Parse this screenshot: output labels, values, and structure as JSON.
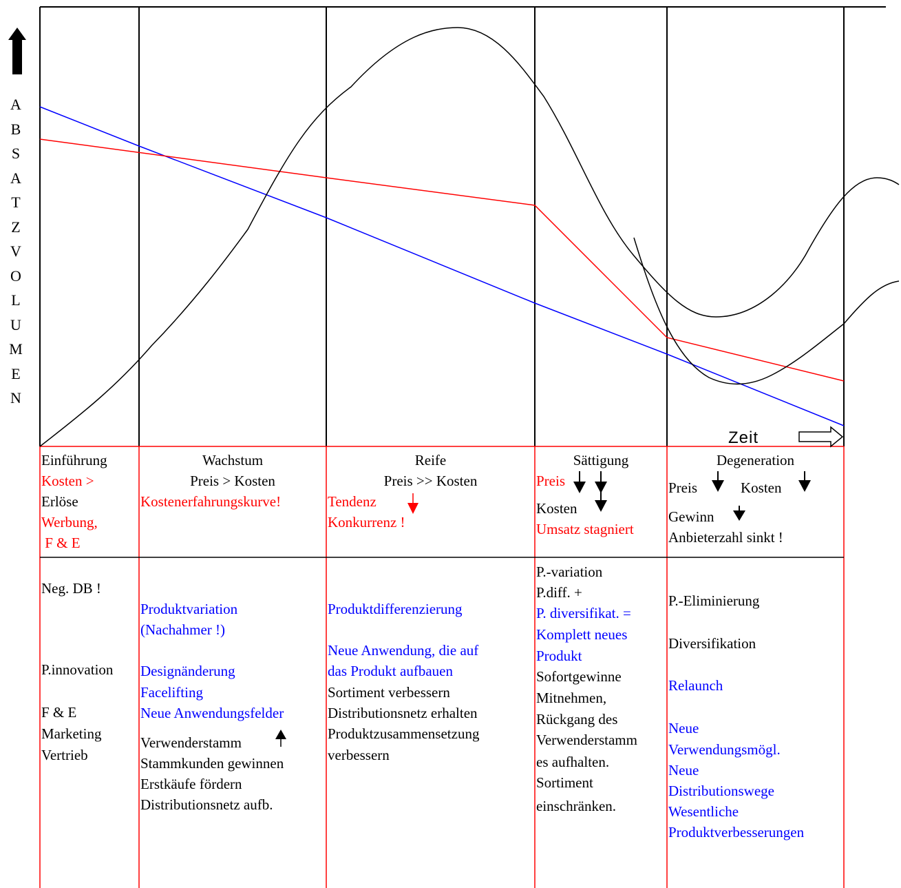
{
  "y_axis": {
    "label_letters": [
      "A",
      "B",
      "S",
      "A",
      "T",
      "Z",
      "V",
      "O",
      "L",
      "U",
      "M",
      "E",
      "N"
    ]
  },
  "x_axis": {
    "label": "Zeit"
  },
  "phases": [
    {
      "name": "Einführung",
      "header_lines": [
        {
          "text": "Einführung",
          "color": "black"
        },
        {
          "text": "Kosten >",
          "color": "red"
        },
        {
          "text": "Erlöse",
          "color": "black"
        },
        {
          "text": "Werbung,",
          "color": "red"
        },
        {
          "text": " F & E",
          "color": "red"
        }
      ],
      "body_lines": [
        {
          "text": "Neg. DB !",
          "color": "black"
        },
        {
          "text": "P.innovation",
          "color": "black"
        },
        {
          "text": "F & E",
          "color": "black"
        },
        {
          "text": "Marketing",
          "color": "black"
        },
        {
          "text": "Vertrieb",
          "color": "black"
        }
      ]
    },
    {
      "name": "Wachstum",
      "header_lines": [
        {
          "text": "Wachstum",
          "color": "black"
        },
        {
          "text": "Preis > Kosten",
          "color": "black"
        },
        {
          "text": "Kostenerfahrungskurve!",
          "color": "red"
        }
      ],
      "body_lines": [
        {
          "text": "Produktvariation",
          "color": "blue"
        },
        {
          "text": "(Nachahmer !)",
          "color": "blue"
        },
        {
          "text": "Designänderung",
          "color": "blue"
        },
        {
          "text": "Facelifting",
          "color": "blue"
        },
        {
          "text": "Neue Anwendungsfelder",
          "color": "blue"
        },
        {
          "text": "Verwenderstamm",
          "color": "black"
        },
        {
          "text": "Stammkunden gewinnen",
          "color": "black"
        },
        {
          "text": "Erstkäufe fördern",
          "color": "black"
        },
        {
          "text": "Distributionsnetz aufb.",
          "color": "black"
        }
      ]
    },
    {
      "name": "Reife",
      "header_lines": [
        {
          "text": "Reife",
          "color": "black"
        },
        {
          "text": "Preis >> Kosten",
          "color": "black"
        },
        {
          "text": "Tendenz",
          "color": "red"
        },
        {
          "text": "Konkurrenz !",
          "color": "red"
        }
      ],
      "body_lines": [
        {
          "text": "Produktdifferenzierung",
          "color": "blue"
        },
        {
          "text": "Neue Anwendung, die auf",
          "color": "blue"
        },
        {
          "text": "das Produkt aufbauen",
          "color": "blue"
        },
        {
          "text": "Sortiment verbessern",
          "color": "black"
        },
        {
          "text": "Distributionsnetz erhalten",
          "color": "black"
        },
        {
          "text": "Produktzusammensetzung",
          "color": "black"
        },
        {
          "text": "verbessern",
          "color": "black"
        }
      ]
    },
    {
      "name": "Sättigung",
      "header_lines": [
        {
          "text": "Sättigung",
          "color": "black"
        },
        {
          "text": "Preis",
          "color": "red"
        },
        {
          "text": "Kosten",
          "color": "black"
        },
        {
          "text": "Umsatz stagniert",
          "color": "red"
        }
      ],
      "body_lines": [
        {
          "text": "P.-variation",
          "color": "black"
        },
        {
          "text": "P.diff. +",
          "color": "black"
        },
        {
          "text": "P. diversifikat. =",
          "color": "blue"
        },
        {
          "text": "Komplett neues",
          "color": "blue"
        },
        {
          "text": "Produkt",
          "color": "blue"
        },
        {
          "text": "Sofortgewinne",
          "color": "black"
        },
        {
          "text": "Mitnehmen,",
          "color": "black"
        },
        {
          "text": "Rückgang des",
          "color": "black"
        },
        {
          "text": "Verwenderstamm",
          "color": "black"
        },
        {
          "text": "es aufhalten.",
          "color": "black"
        },
        {
          "text": "Sortiment",
          "color": "black"
        },
        {
          "text": "einschränken.",
          "color": "black"
        }
      ]
    },
    {
      "name": "Degeneration",
      "header_lines": [
        {
          "text": "Degeneration",
          "color": "black"
        },
        {
          "text": "Preis",
          "color": "black"
        },
        {
          "text": "Kosten",
          "color": "black"
        },
        {
          "text": "Gewinn",
          "color": "black"
        },
        {
          "text": "Anbieterzahl sinkt !",
          "color": "black"
        }
      ],
      "body_lines": [
        {
          "text": "P.-Eliminierung",
          "color": "black"
        },
        {
          "text": "Diversifikation",
          "color": "black"
        },
        {
          "text": "Relaunch",
          "color": "blue"
        },
        {
          "text": "Neue",
          "color": "blue"
        },
        {
          "text": "Verwendungsmögl.",
          "color": "blue"
        },
        {
          "text": "Neue",
          "color": "blue"
        },
        {
          "text": "Distributionswege",
          "color": "blue"
        },
        {
          "text": "Wesentliche",
          "color": "blue"
        },
        {
          "text": "Produktverbesserungen",
          "color": "blue"
        }
      ]
    }
  ],
  "colors": {
    "price_line": "#ff0000",
    "cost_line": "#0000ff",
    "sales_curve": "#000000",
    "table_border": "#ff0000"
  },
  "icons": [
    "up-arrow-icon",
    "down-arrow-icon",
    "right-outline-arrow-icon"
  ]
}
